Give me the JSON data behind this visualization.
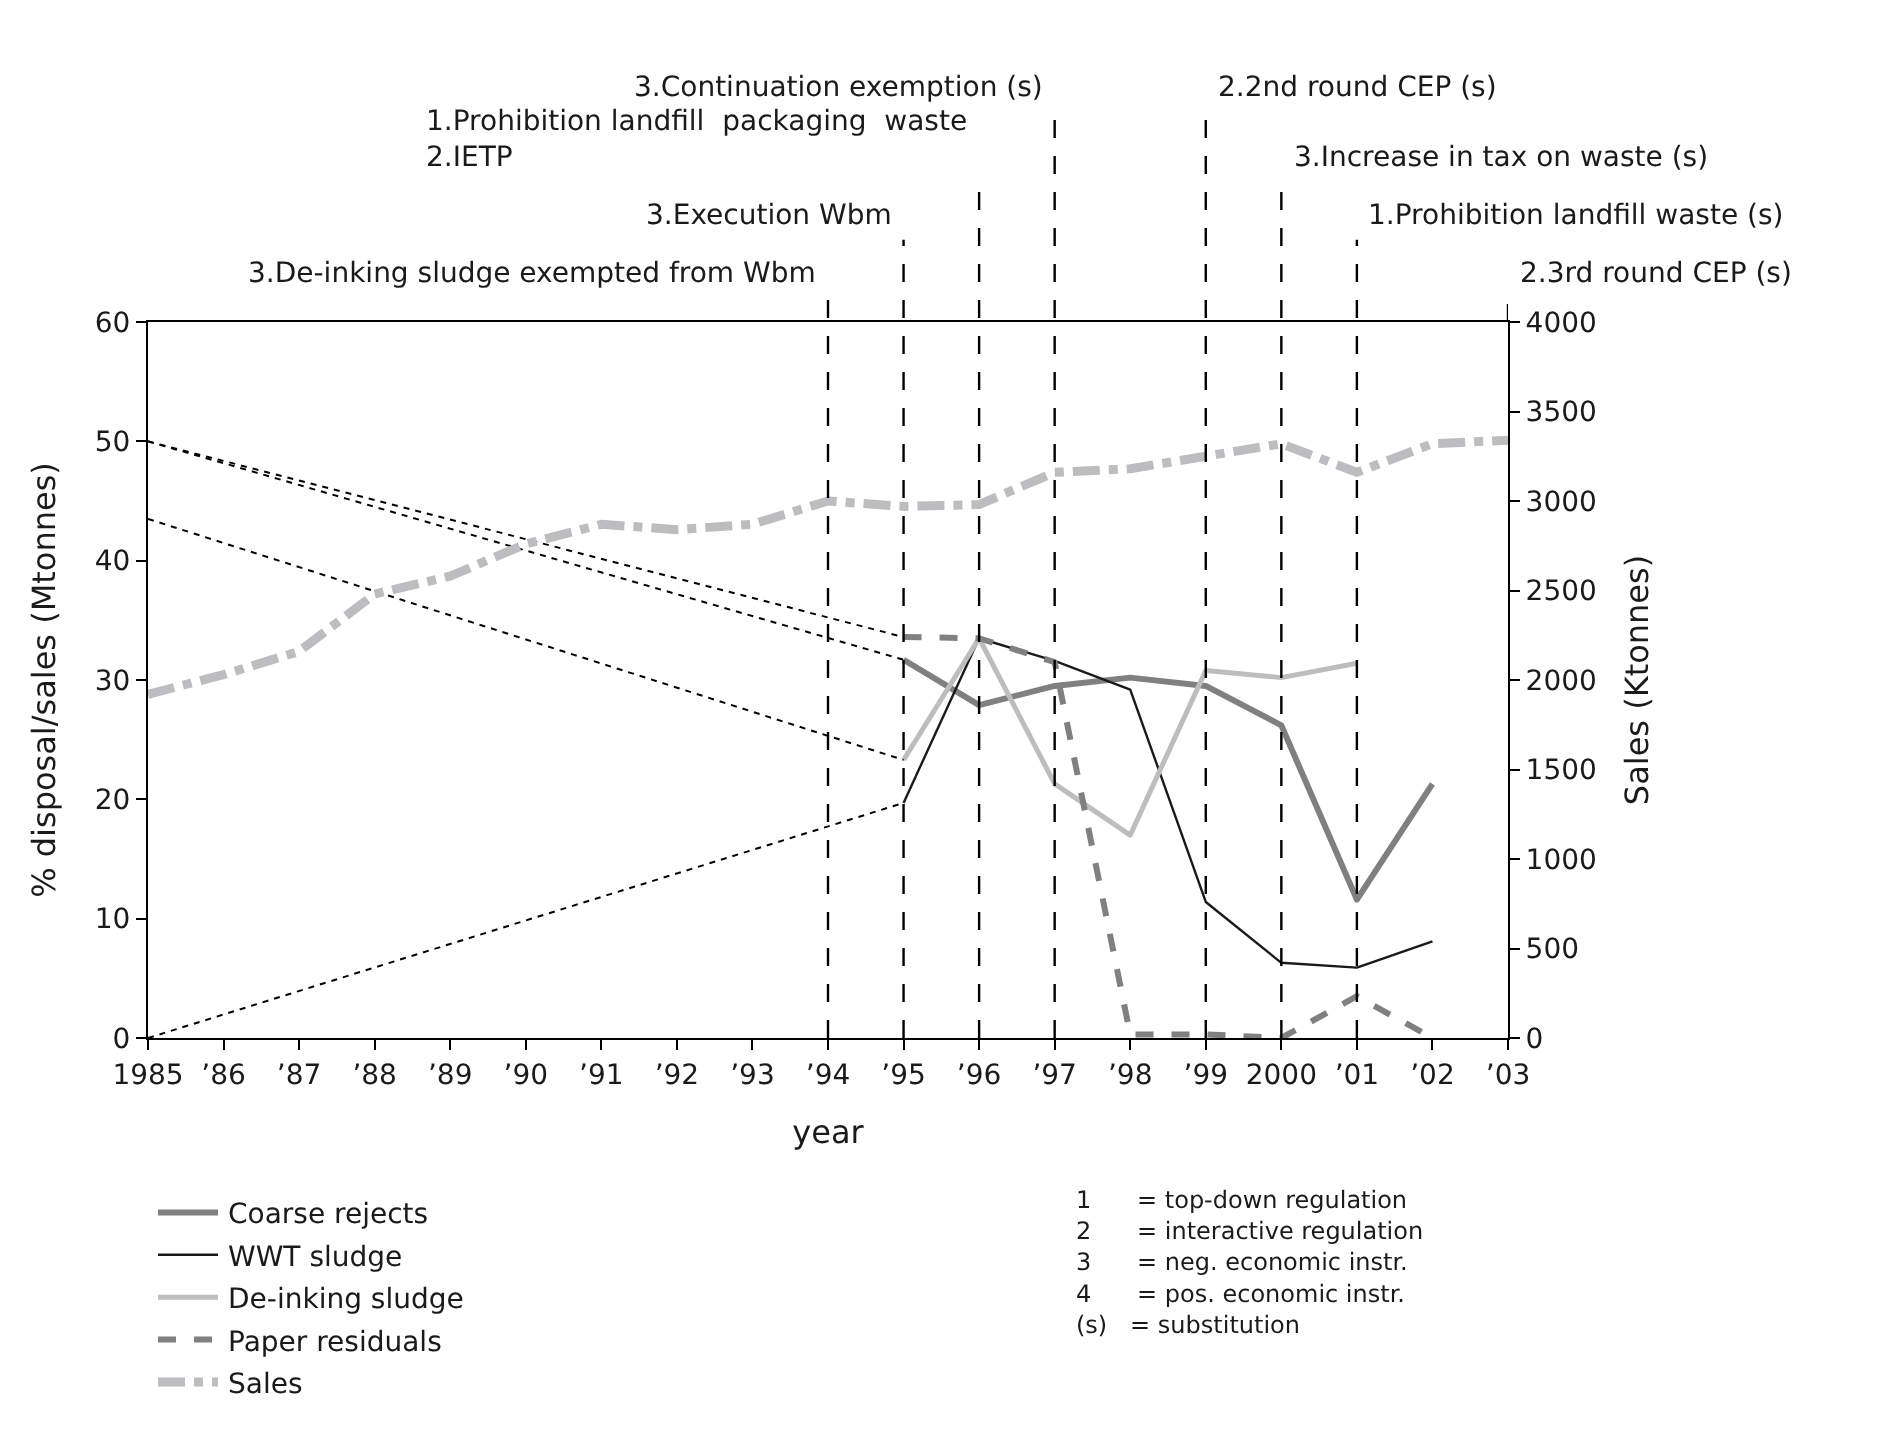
{
  "chart_data": {
    "type": "line",
    "xlabel": "year",
    "ylabel": "% disposal/sales (Mtonnes)",
    "y2label": "Sales (Ktonnes)",
    "x": [
      1995,
      1996,
      1997,
      1998,
      1999,
      2000,
      2001,
      2002
    ],
    "xlim": [
      1985,
      2003
    ],
    "xticks": [
      1985,
      {
        "value": 1986,
        "label": "’86"
      },
      {
        "value": 1987,
        "label": "’87"
      },
      {
        "value": 1988,
        "label": "’88"
      },
      {
        "value": 1989,
        "label": "’89"
      },
      {
        "value": 1990,
        "label": "’90"
      },
      {
        "value": 1991,
        "label": "’91"
      },
      {
        "value": 1992,
        "label": "’92"
      },
      {
        "value": 1993,
        "label": "’93"
      },
      {
        "value": 1994,
        "label": "’94"
      },
      {
        "value": 1995,
        "label": "’95"
      },
      {
        "value": 1996,
        "label": "’96"
      },
      {
        "value": 1997,
        "label": "’97"
      },
      {
        "value": 1998,
        "label": "’98"
      },
      {
        "value": 1999,
        "label": "’99"
      },
      2000,
      {
        "value": 2001,
        "label": "’01"
      },
      {
        "value": 2002,
        "label": "’02"
      },
      {
        "value": 2003,
        "label": "’03"
      }
    ],
    "ylim": [
      0,
      60
    ],
    "yticks": [
      0,
      10,
      20,
      30,
      40,
      50,
      60
    ],
    "y2lim": [
      0,
      4000
    ],
    "y2ticks": [
      0,
      500,
      1000,
      1500,
      2000,
      2500,
      3000,
      3500,
      4000
    ],
    "legend": "bottom left",
    "series": [
      {
        "name": "Coarse rejects",
        "color": "#808080",
        "line_style": "solid",
        "values": [
          31.7,
          27.9,
          29.5,
          30.2,
          29.5,
          26.2,
          11.6,
          21.3
        ]
      },
      {
        "name": "WWT sludge",
        "color": "#1a1a1a",
        "line_style": "solid",
        "values": [
          19.7,
          33.5,
          31.6,
          29.2,
          11.4,
          6.3,
          5.9,
          8.1
        ]
      },
      {
        "name": "De-inking sludge",
        "color": "#bdbdbf",
        "line_style": "solid",
        "values": [
          23.3,
          33.5,
          21.3,
          17,
          30.8,
          30.2,
          31.4,
          null
        ]
      },
      {
        "name": "Paper residuals",
        "color": "#808080",
        "line_style": "dashed",
        "values": [
          33.6,
          33.5,
          31.5,
          0.3,
          0.3,
          0,
          3.5,
          0
        ]
      },
      {
        "name": "Sales",
        "color": "#bdbdbf",
        "line_style": "dashdot",
        "axis": "y2",
        "x": [
          1985,
          1986,
          1987,
          1988,
          1989,
          1990,
          1991,
          1992,
          1993,
          1994,
          1995,
          1996,
          1997,
          1998,
          1999,
          2000,
          2001,
          2002,
          2003
        ],
        "values": [
          1920,
          2030,
          2160,
          2480,
          2580,
          2760,
          2870,
          2840,
          2870,
          3000,
          2970,
          2980,
          3160,
          3180,
          3250,
          3320,
          3160,
          3320,
          3340
        ]
      },
      {
        "color": "#000000",
        "line_style": "dotted",
        "x": [
          1985,
          1995
        ],
        "values": [
          50,
          33.6
        ]
      },
      {
        "color": "#000000",
        "line_style": "dotted",
        "x": [
          1985,
          1995
        ],
        "values": [
          50,
          31.7
        ]
      },
      {
        "color": "#000000",
        "line_style": "dotted",
        "x": [
          1985,
          1995
        ],
        "values": [
          43.5,
          23.3
        ]
      },
      {
        "color": "#000000",
        "line_style": "dotted",
        "x": [
          1985,
          1995
        ],
        "values": [
          0,
          19.7
        ]
      }
    ],
    "ref_lines": [
      {
        "axis": "x",
        "value": 1994,
        "label": "3.De-inking sludge exempted from Wbm",
        "line_style": "dashed",
        "color": "#000000"
      },
      {
        "axis": "x",
        "value": 1995,
        "label": "3.Execution Wbm",
        "line_style": "dashed",
        "color": "#000000"
      },
      {
        "axis": "x",
        "value": 1996,
        "label": "1.Prohibition landfill  packaging  waste\n2.IETP",
        "line_style": "dashed",
        "color": "#000000"
      },
      {
        "axis": "x",
        "value": 1997,
        "label": "3.Continuation exemption (s)",
        "line_style": "dashed",
        "color": "#000000"
      },
      {
        "axis": "x",
        "value": 1999,
        "label": "2.2nd round CEP (s)",
        "line_style": "dashed",
        "color": "#000000"
      },
      {
        "axis": "x",
        "value": 2000,
        "label": "3.Increase in tax on waste (s)",
        "line_style": "dashed",
        "color": "#000000"
      },
      {
        "axis": "x",
        "value": 2001,
        "label": "1.Prohibition landfill waste (s)",
        "line_style": "dashed",
        "color": "#000000"
      },
      {
        "axis": "x",
        "value": 2003,
        "label": "2.3rd round CEP (s)",
        "line_style": "dashed",
        "color": "#000000"
      }
    ],
    "annotations": [
      "1      = top-down regulation\n2      = interactive regulation\n3      = neg. economic instr.\n4      = pos. economic instr.\n(s)   = substitution"
    ]
  }
}
